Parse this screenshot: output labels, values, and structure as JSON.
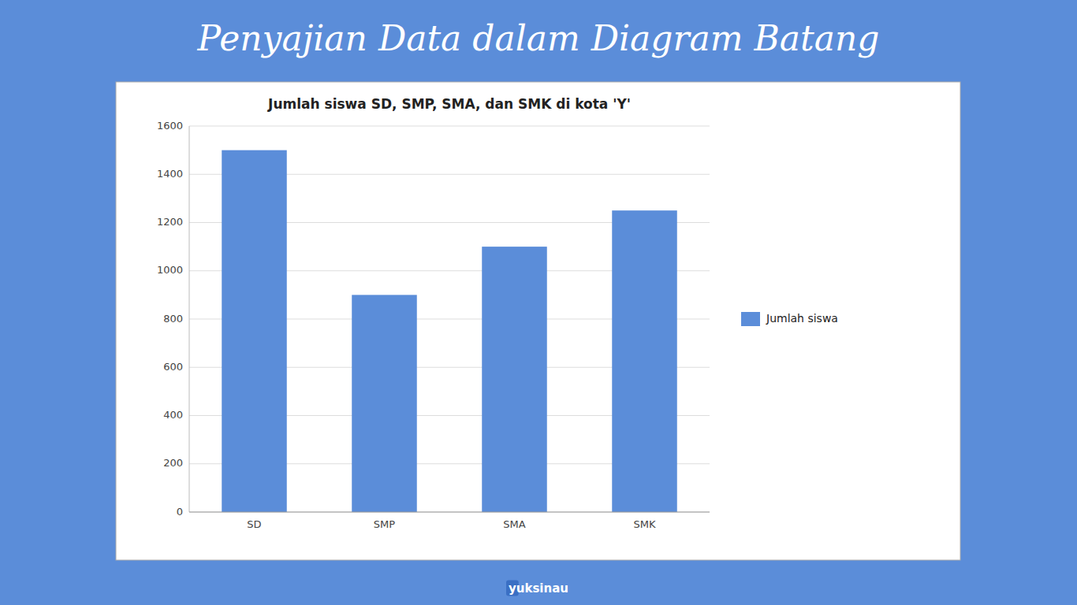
{
  "chart_data": {
    "type": "bar",
    "title": "Penyajian Data dalam Diagram Batang",
    "subtitle": "Jumlah siswa SD, SMP, SMA, dan SMK di kota 'Y'",
    "annotations": [
      "yuksinau"
    ],
    "categories": [
      "SD",
      "SMP",
      "SMA",
      "SMK"
    ],
    "series": [
      {
        "name": "Jumlah siswa",
        "color": "#5b8dd9",
        "values": [
          1500,
          900,
          1100,
          1250
        ]
      }
    ],
    "ylim": [
      0,
      1600
    ],
    "yticks": [
      0,
      200,
      400,
      600,
      800,
      1000,
      1200,
      1400,
      1600
    ],
    "grid": true,
    "legend": "right"
  }
}
